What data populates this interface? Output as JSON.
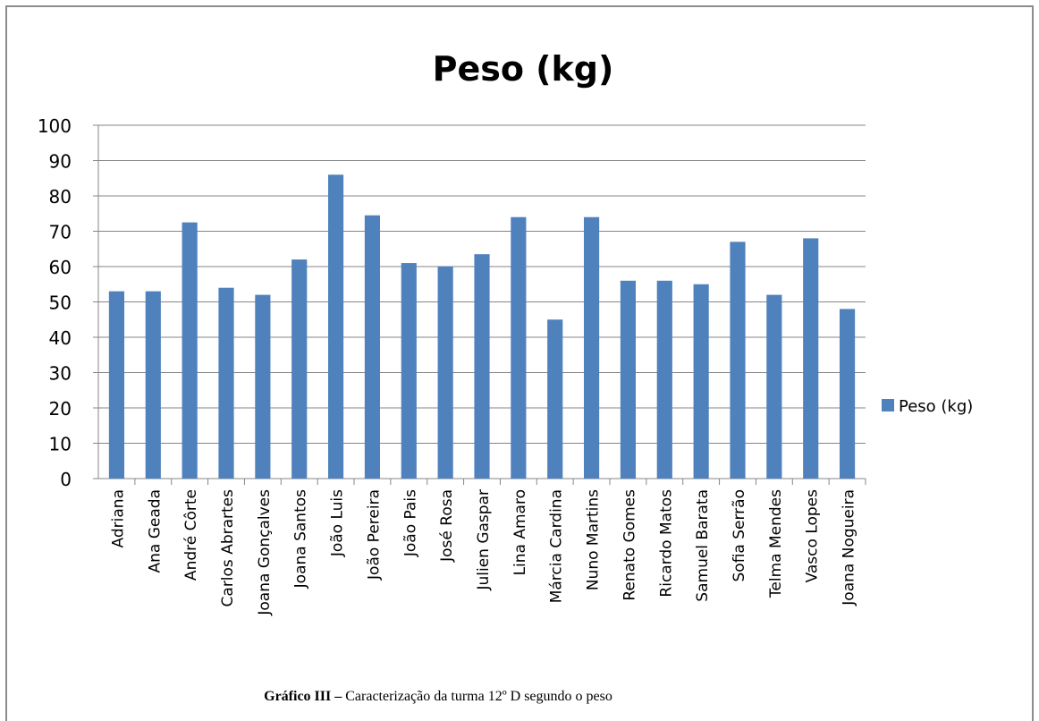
{
  "chart_data": {
    "type": "bar",
    "title": "Peso (kg)",
    "xlabel": "",
    "ylabel": "",
    "ylim": [
      0,
      100
    ],
    "yticks": [
      0,
      10,
      20,
      30,
      40,
      50,
      60,
      70,
      80,
      90,
      100
    ],
    "grid": true,
    "legend_position": "right",
    "categories": [
      "Adriana",
      "Ana Geada",
      "André Côrte",
      "Carlos Abrartes",
      "Joana Gonçalves",
      "Joana Santos",
      "João Luis",
      "João Pereira",
      "João Pais",
      "José Rosa",
      "Julien Gaspar",
      "Lina Amaro",
      "Márcia Cardina",
      "Nuno Martins",
      "Renato Gomes",
      "Ricardo Matos",
      "Samuel Barata",
      "Sofia Serrão",
      "Telma Mendes",
      "Vasco Lopes",
      "Joana Nogueira"
    ],
    "series": [
      {
        "name": "Peso (kg)",
        "color": "#4f81bd",
        "values": [
          53,
          53,
          72.5,
          54,
          52,
          62,
          86,
          74.5,
          61,
          60,
          63.5,
          74,
          45,
          74,
          56,
          56,
          55,
          67,
          52,
          68,
          48
        ]
      }
    ]
  },
  "caption": {
    "bold": "Gráfico III –",
    "text": " Caracterização da turma 12º D segundo o peso"
  }
}
